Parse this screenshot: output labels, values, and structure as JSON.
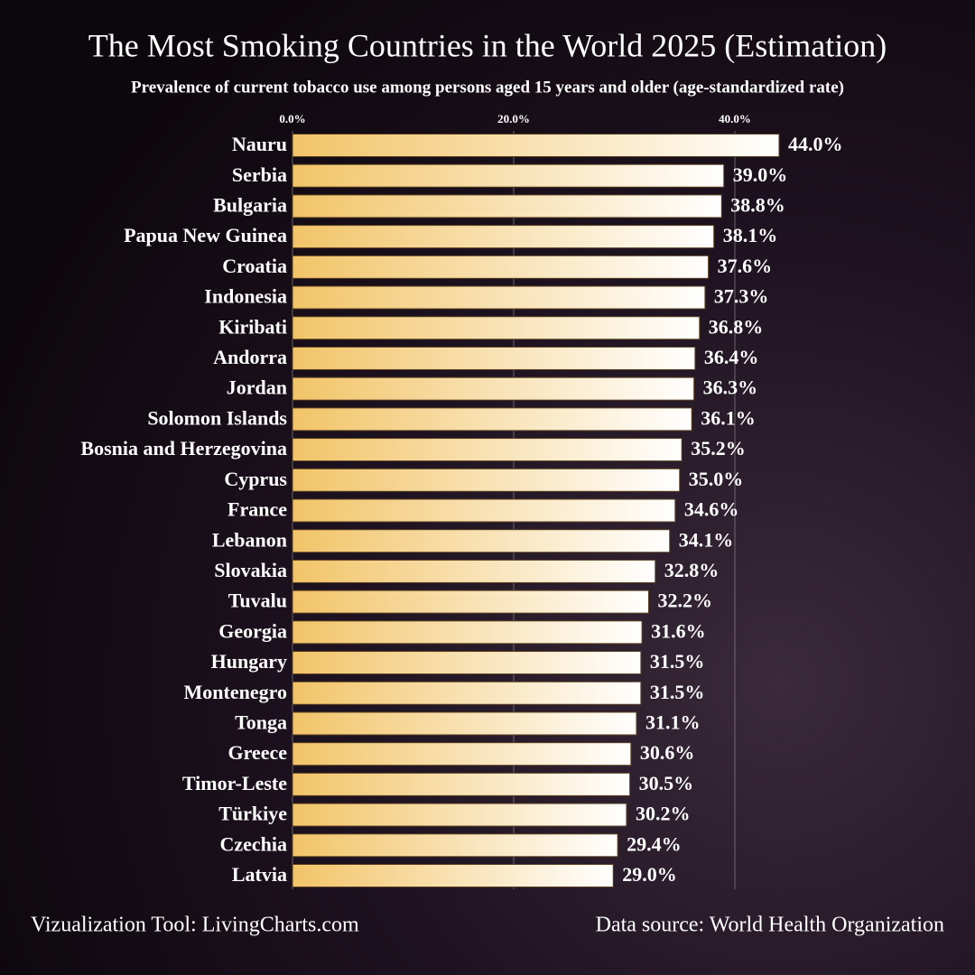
{
  "chart_data": {
    "type": "bar",
    "orientation": "horizontal",
    "title": "The Most Smoking Countries in the World 2025 (Estimation)",
    "subtitle": "Prevalence of current tobacco use among persons aged 15 years and older (age-standardized rate)",
    "categories": [
      "Nauru",
      "Serbia",
      "Bulgaria",
      "Papua New Guinea",
      "Croatia",
      "Indonesia",
      "Kiribati",
      "Andorra",
      "Jordan",
      "Solomon Islands",
      "Bosnia and Herzegovina",
      "Cyprus",
      "France",
      "Lebanon",
      "Slovakia",
      "Tuvalu",
      "Georgia",
      "Hungary",
      "Montenegro",
      "Tonga",
      "Greece",
      "Timor-Leste",
      "Türkiye",
      "Czechia",
      "Latvia"
    ],
    "values": [
      44.0,
      39.0,
      38.8,
      38.1,
      37.6,
      37.3,
      36.8,
      36.4,
      36.3,
      36.1,
      35.2,
      35.0,
      34.6,
      34.1,
      32.8,
      32.2,
      31.6,
      31.5,
      31.5,
      31.1,
      30.6,
      30.5,
      30.2,
      29.4,
      29.0
    ],
    "value_labels": [
      "44.0%",
      "39.0%",
      "38.8%",
      "38.1%",
      "37.6%",
      "37.3%",
      "36.8%",
      "36.4%",
      "36.3%",
      "36.1%",
      "35.2%",
      "35.0%",
      "34.6%",
      "34.1%",
      "32.8%",
      "32.2%",
      "31.6%",
      "31.5%",
      "31.5%",
      "31.1%",
      "30.6%",
      "30.5%",
      "30.2%",
      "29.4%",
      "29.0%"
    ],
    "xlim": [
      0,
      44
    ],
    "xticks": [
      {
        "value": 0,
        "label": "0.0%"
      },
      {
        "value": 20,
        "label": "20.0%"
      },
      {
        "value": 40,
        "label": "40.0%"
      }
    ],
    "grid": true,
    "color": "#f2c468",
    "footer_left": "Vizualization Tool: LivingCharts.com",
    "footer_right": "Data source: World Health Organization"
  }
}
